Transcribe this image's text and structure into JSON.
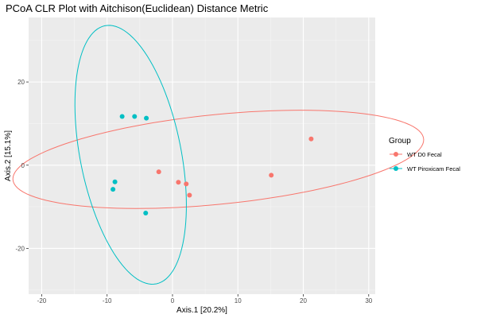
{
  "chart_data": {
    "type": "scatter",
    "title": "PCoA CLR Plot with Aitchison(Euclidean) Distance Metric",
    "xlabel": "Axis.1   [20.2%]",
    "ylabel": "Axis.2  [15.1%]",
    "xlim": [
      -22,
      31
    ],
    "ylim": [
      -31,
      35.5
    ],
    "x_ticks": [
      -20,
      -10,
      0,
      10,
      20,
      30
    ],
    "y_ticks": [
      -20,
      0,
      20
    ],
    "grid": true,
    "legend": {
      "title": "Group",
      "placement": "right"
    },
    "series": [
      {
        "name": "WT D0 Fecal",
        "color": "#F8766D",
        "points": [
          {
            "x": 21.2,
            "y": 6.3
          },
          {
            "x": 15.1,
            "y": -2.4
          },
          {
            "x": -2.1,
            "y": -1.6
          },
          {
            "x": 0.9,
            "y": -4.1
          },
          {
            "x": 2.1,
            "y": -4.5
          },
          {
            "x": 2.6,
            "y": -7.2
          }
        ],
        "ellipse": {
          "cx": 7.0,
          "cy": 1.4,
          "rx": 31.8,
          "ry": 10.7,
          "angle_deg": 9.6
        }
      },
      {
        "name": "WT Piroxicam Fecal",
        "color": "#00BFC4",
        "points": [
          {
            "x": -7.7,
            "y": 11.7
          },
          {
            "x": -5.8,
            "y": 11.7
          },
          {
            "x": -4.0,
            "y": 11.3
          },
          {
            "x": -8.8,
            "y": -4.0
          },
          {
            "x": -9.1,
            "y": -5.8
          },
          {
            "x": -4.1,
            "y": -11.5
          }
        ],
        "ellipse": {
          "cx": -6.4,
          "cy": 2.5,
          "rx": 31.3,
          "ry": 7.8,
          "angle_deg": 96.5
        }
      }
    ]
  }
}
